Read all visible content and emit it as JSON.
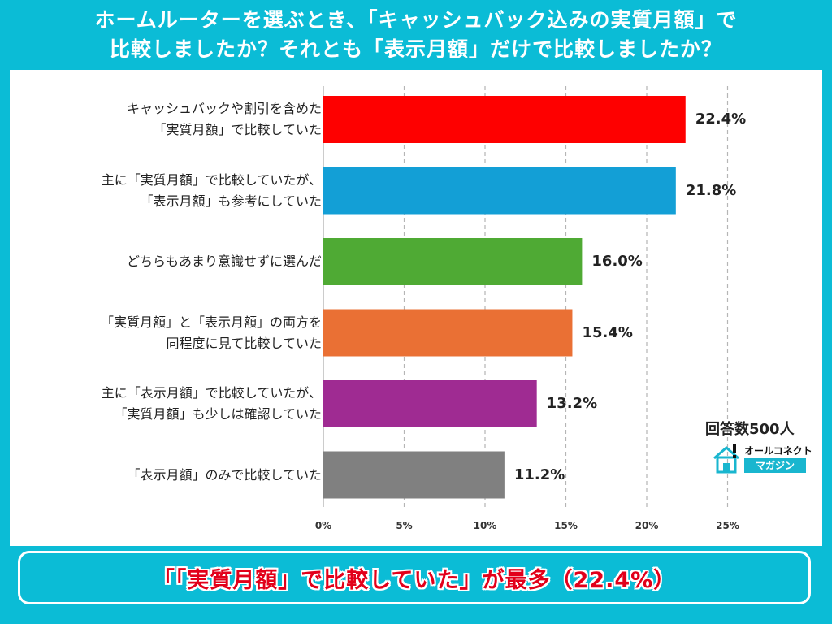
{
  "title": {
    "line1": "ホームルーターを選ぶとき、「キャッシュバック込みの実質月額」で",
    "line2": "比較しましたか？それとも「表示月額」だけで比較しましたか？"
  },
  "chart_data": {
    "type": "bar",
    "orientation": "horizontal",
    "categories": [
      [
        "キャッシュバックや割引を含めた",
        "「実質月額」で比較していた"
      ],
      [
        "主に「実質月額」で比較していたが、",
        "「表示月額」も参考にしていた"
      ],
      [
        "どちらもあまり意識せずに選んだ"
      ],
      [
        "「実質月額」と「表示月額」の両方を",
        "同程度に見て比較していた"
      ],
      [
        "主に「表示月額」で比較していたが、",
        "「実質月額」も少しは確認していた"
      ],
      [
        "「表示月額」のみで比較していた"
      ]
    ],
    "values": [
      22.4,
      21.8,
      16.0,
      15.4,
      13.2,
      11.2
    ],
    "value_labels": [
      "22.4%",
      "21.8%",
      "16.0%",
      "15.4%",
      "13.2%",
      "11.2%"
    ],
    "colors": [
      "#fe0000",
      "#139fd6",
      "#4faa34",
      "#ea7034",
      "#9f2b92",
      "#808080"
    ],
    "xlim": [
      0,
      25
    ],
    "xticks": [
      0,
      5,
      10,
      15,
      20,
      25
    ],
    "xtick_labels": [
      "0%",
      "5%",
      "10%",
      "15%",
      "20%",
      "25%"
    ],
    "grid": "vertical-dashed"
  },
  "respondents": "回答数500人",
  "logo": {
    "name": "house-logo-icon",
    "line1": "オールコネクト",
    "line2": "マガジン"
  },
  "footer": "「「実質月額」で比較していた」が最多（22.4%）",
  "colors": {
    "background": "#0bbcd6",
    "panel": "#ffffff",
    "footer_text": "#e2001a"
  }
}
